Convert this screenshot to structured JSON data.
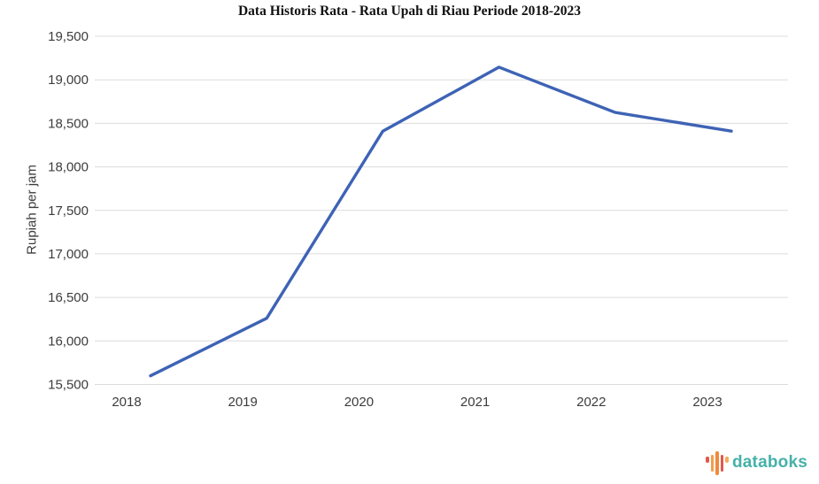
{
  "title": "Data Historis Rata - Rata Upah di Riau Periode 2018-2023",
  "chart_data": {
    "type": "line",
    "title": "Data Historis Rata - Rata Upah di Riau Periode 2018-2023",
    "categories": [
      "2018",
      "2019",
      "2020",
      "2021",
      "2022",
      "2023"
    ],
    "values": [
      15600,
      16260,
      18410,
      19145,
      18625,
      18410
    ],
    "xlabel": "",
    "ylabel": "Rupiah per jam",
    "ylim": [
      15500,
      19500
    ],
    "yticks": [
      15500,
      16000,
      16500,
      17000,
      17500,
      18000,
      18500,
      19000,
      19500
    ],
    "grid": "horizontal",
    "legend": "none",
    "line_color": "#3e63b5",
    "grid_color": "#dcdcdc",
    "tick_label_color": "#3c3c3c"
  },
  "branding": {
    "logo_text": "databoks",
    "logo_text_color": "#45b1a8",
    "logo_bar_colors": [
      "#e2574c",
      "#f49d4b",
      "#ef8a3c",
      "#e2574c",
      "#f5a85a"
    ]
  }
}
